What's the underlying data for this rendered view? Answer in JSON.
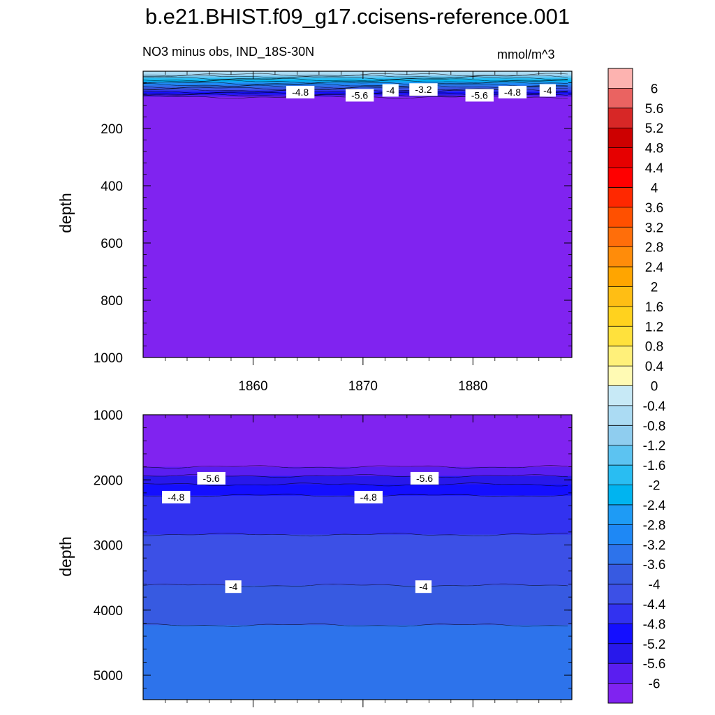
{
  "chart_data": {
    "type": "heatmap",
    "title": "b.e21.BHIST.f09_g17.ccisens-reference.001",
    "subtitle": "NO3 minus obs, IND_18S-30N",
    "units": "mmol/m^3",
    "xlabel": "",
    "ylabel": "depth",
    "x_range": [
      1850,
      1889
    ],
    "x_ticks": [
      "1860",
      "1870",
      "1880"
    ],
    "panels": [
      {
        "name": "upper",
        "ylim": [
          0,
          1000
        ],
        "y_ticks": [
          "200",
          "400",
          "600",
          "800",
          "1000"
        ],
        "bands": [
          {
            "top": 0,
            "bottom": 12,
            "value": -0.4
          },
          {
            "top": 12,
            "bottom": 18,
            "value": -0.8
          },
          {
            "top": 18,
            "bottom": 24,
            "value": -1.2
          },
          {
            "top": 24,
            "bottom": 30,
            "value": -1.6
          },
          {
            "top": 30,
            "bottom": 36,
            "value": -2.0
          },
          {
            "top": 36,
            "bottom": 42,
            "value": -2.4
          },
          {
            "top": 42,
            "bottom": 48,
            "value": -2.8
          },
          {
            "top": 48,
            "bottom": 54,
            "value": -3.2
          },
          {
            "top": 54,
            "bottom": 60,
            "value": -3.6
          },
          {
            "top": 60,
            "bottom": 66,
            "value": -4.0
          },
          {
            "top": 66,
            "bottom": 72,
            "value": -4.4
          },
          {
            "top": 72,
            "bottom": 78,
            "value": -4.8
          },
          {
            "top": 78,
            "bottom": 84,
            "value": -5.2
          },
          {
            "top": 84,
            "bottom": 90,
            "value": -5.6
          },
          {
            "top": 90,
            "bottom": 1000,
            "value": -6.0
          }
        ],
        "contour_labels": [
          {
            "text": "-4.8",
            "x": 1864.3,
            "y": 73
          },
          {
            "text": "-5.6",
            "x": 1869.7,
            "y": 84
          },
          {
            "text": "-4",
            "x": 1872.5,
            "y": 67
          },
          {
            "text": "-3.2",
            "x": 1875.5,
            "y": 64
          },
          {
            "text": "-5.6",
            "x": 1880.6,
            "y": 84
          },
          {
            "text": "-4.8",
            "x": 1883.6,
            "y": 73
          },
          {
            "text": "-4",
            "x": 1886.8,
            "y": 67
          }
        ]
      },
      {
        "name": "lower",
        "ylim": [
          1000,
          5375
        ],
        "y_ticks": [
          "1000",
          "2000",
          "3000",
          "4000",
          "5000"
        ],
        "bands": [
          {
            "top": 1000,
            "bottom": 1800,
            "value": -6.0
          },
          {
            "top": 1800,
            "bottom": 1940,
            "value": -5.6
          },
          {
            "top": 1940,
            "bottom": 2070,
            "value": -5.2
          },
          {
            "top": 2070,
            "bottom": 2240,
            "value": -4.8
          },
          {
            "top": 2240,
            "bottom": 2840,
            "value": -4.4
          },
          {
            "top": 2840,
            "bottom": 3620,
            "value": -4.0
          },
          {
            "top": 3620,
            "bottom": 4230,
            "value": -3.6
          },
          {
            "top": 4230,
            "bottom": 5375,
            "value": -3.2
          }
        ],
        "contour_labels": [
          {
            "text": "-5.6",
            "x": 1856.2,
            "y": 1975
          },
          {
            "text": "-5.6",
            "x": 1875.6,
            "y": 1975
          },
          {
            "text": "-4.8",
            "x": 1853.0,
            "y": 2265
          },
          {
            "text": "-4.8",
            "x": 1870.5,
            "y": 2265
          },
          {
            "text": "-4",
            "x": 1858.2,
            "y": 3640
          },
          {
            "text": "-4",
            "x": 1875.5,
            "y": 3640
          }
        ]
      }
    ],
    "colorbar": {
      "labels": [
        "6",
        "5.6",
        "5.2",
        "4.8",
        "4.4",
        "4",
        "3.6",
        "3.2",
        "2.8",
        "2.4",
        "2",
        "1.6",
        "1.2",
        "0.8",
        "0.4",
        "0",
        "-0.4",
        "-0.8",
        "-1.2",
        "-1.6",
        "-2",
        "-2.4",
        "-2.8",
        "-3.2",
        "-3.6",
        "-4",
        "-4.4",
        "-4.8",
        "-5.2",
        "-5.6",
        "-6"
      ],
      "colors": [
        "#fdb3b0",
        "#ea6361",
        "#d72726",
        "#cd0000",
        "#e60000",
        "#ff0000",
        "#ff2800",
        "#ff5000",
        "#ff6e0a",
        "#ff8c0a",
        "#ffa500",
        "#ffbe14",
        "#ffd21e",
        "#ffe13c",
        "#fff07a",
        "#fffab4",
        "#c7e9f6",
        "#abdbf3",
        "#8fcdef",
        "#5cc3f1",
        "#29bdf2",
        "#00b4f0",
        "#1e9bf5",
        "#1e88f5",
        "#2d73eb",
        "#375ae1",
        "#3c50e6",
        "#3232f0",
        "#140fff",
        "#2818eb",
        "#5a1ef0",
        "#8023f0"
      ]
    }
  }
}
